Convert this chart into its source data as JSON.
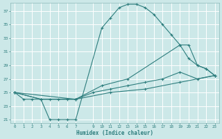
{
  "xlabel": "Humidex (Indice chaleur)",
  "xlim": [
    -0.5,
    23.5
  ],
  "ylim": [
    20.5,
    38.2
  ],
  "xticks": [
    0,
    1,
    2,
    3,
    4,
    5,
    6,
    7,
    9,
    10,
    11,
    12,
    13,
    14,
    15,
    16,
    17,
    18,
    19,
    20,
    21,
    22,
    23
  ],
  "yticks": [
    21,
    23,
    25,
    27,
    29,
    31,
    33,
    35,
    37
  ],
  "bg_color": "#cce8e8",
  "grid_color": "#ffffff",
  "line_color": "#2d7d7d",
  "lines": [
    {
      "x": [
        0,
        1,
        2,
        3,
        4,
        5,
        6,
        7,
        10,
        11,
        12,
        13,
        14,
        15,
        16,
        17,
        18,
        19,
        20,
        21,
        22,
        23
      ],
      "y": [
        25,
        24,
        24,
        24,
        21,
        21,
        21,
        21,
        34.5,
        36,
        37.5,
        38,
        38,
        37.5,
        36.5,
        35,
        33.5,
        32,
        32,
        29,
        28.5,
        27.5
      ]
    },
    {
      "x": [
        0,
        3,
        4,
        5,
        6,
        7,
        10,
        13,
        19,
        20,
        21,
        22,
        23
      ],
      "y": [
        25,
        24,
        24,
        24,
        24,
        24,
        26,
        27,
        32,
        30,
        29,
        28.5,
        27.5
      ]
    },
    {
      "x": [
        0,
        3,
        7,
        9,
        11,
        13,
        15,
        17,
        19,
        21,
        23
      ],
      "y": [
        25,
        24,
        24,
        25,
        25.5,
        26,
        26.5,
        27,
        28,
        27,
        27.5
      ]
    },
    {
      "x": [
        0,
        7,
        11,
        15,
        19,
        23
      ],
      "y": [
        25,
        24,
        25,
        25.5,
        26.5,
        27.5
      ]
    }
  ]
}
